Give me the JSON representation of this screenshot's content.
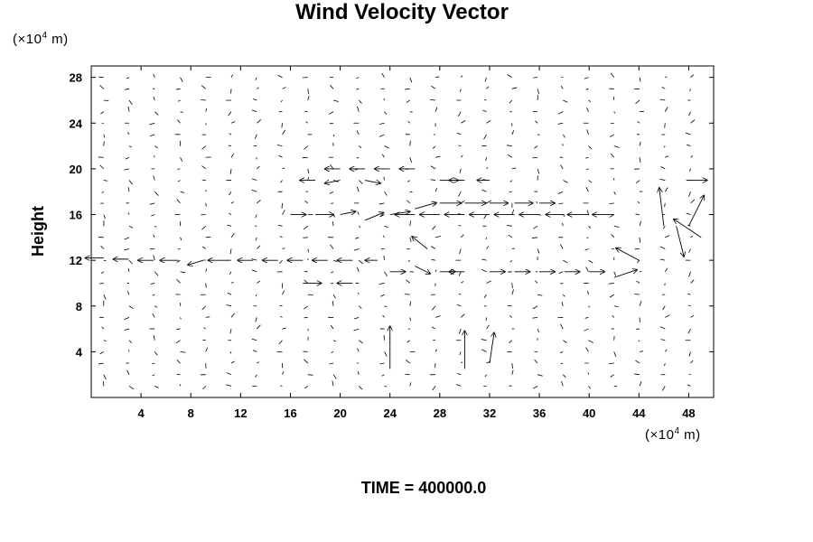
{
  "chart_data": {
    "type": "vector_field",
    "title": "Wind Velocity Vector",
    "ylabel": "Height",
    "x_unit_label": "(×10⁴ m)",
    "y_unit_label": "(×10⁴ m)",
    "unit_prefix": "(×10",
    "unit_exp": "4",
    "unit_suffix": " m)",
    "xlim": [
      0,
      50
    ],
    "ylim": [
      0,
      29
    ],
    "xticks": [
      4,
      8,
      12,
      16,
      20,
      24,
      28,
      32,
      36,
      40,
      44,
      48
    ],
    "yticks": [
      4,
      8,
      12,
      16,
      20,
      24,
      28
    ],
    "grid_dx": 2.05,
    "grid_dy": 1.0,
    "annotation": "TIME = 400000.0",
    "vectors": [
      {
        "x": 1,
        "y": 12.2,
        "u": -1.2,
        "v": 0.0
      },
      {
        "x": 3,
        "y": 12.1,
        "u": -1.0,
        "v": 0.0
      },
      {
        "x": 5,
        "y": 12.0,
        "u": -1.0,
        "v": 0.0
      },
      {
        "x": 7,
        "y": 12.0,
        "u": -1.2,
        "v": 0.0
      },
      {
        "x": 9,
        "y": 12.0,
        "u": -1.0,
        "v": -0.3
      },
      {
        "x": 11,
        "y": 12.0,
        "u": -1.3,
        "v": 0.0
      },
      {
        "x": 13,
        "y": 12.0,
        "u": -1.0,
        "v": 0.0
      },
      {
        "x": 15,
        "y": 12.0,
        "u": -1.0,
        "v": 0.0
      },
      {
        "x": 17,
        "y": 12.0,
        "u": -1.0,
        "v": 0.0
      },
      {
        "x": 19,
        "y": 12.0,
        "u": -1.0,
        "v": 0.0
      },
      {
        "x": 21,
        "y": 12.0,
        "u": -1.0,
        "v": 0.0
      },
      {
        "x": 23,
        "y": 12.0,
        "u": -0.8,
        "v": 0.0
      },
      {
        "x": 16,
        "y": 16.0,
        "u": 1.0,
        "v": 0.0
      },
      {
        "x": 18,
        "y": 16.0,
        "u": 1.2,
        "v": 0.0
      },
      {
        "x": 20,
        "y": 16.0,
        "u": 1.0,
        "v": 0.2
      },
      {
        "x": 22,
        "y": 15.5,
        "u": 1.2,
        "v": 0.5
      },
      {
        "x": 24,
        "y": 16.0,
        "u": 1.3,
        "v": 0.2
      },
      {
        "x": 26,
        "y": 16.5,
        "u": 1.4,
        "v": 0.4
      },
      {
        "x": 28,
        "y": 17.0,
        "u": 1.4,
        "v": 0.0
      },
      {
        "x": 30,
        "y": 17.0,
        "u": 1.4,
        "v": 0.0
      },
      {
        "x": 32,
        "y": 17.0,
        "u": 1.2,
        "v": 0.0
      },
      {
        "x": 34,
        "y": 17.0,
        "u": 1.2,
        "v": 0.0
      },
      {
        "x": 36,
        "y": 17.0,
        "u": 1.0,
        "v": 0.0
      },
      {
        "x": 26,
        "y": 16.0,
        "u": -1.3,
        "v": 0.0
      },
      {
        "x": 28,
        "y": 16.0,
        "u": -1.3,
        "v": 0.0
      },
      {
        "x": 30,
        "y": 16.0,
        "u": -1.3,
        "v": 0.0
      },
      {
        "x": 32,
        "y": 16.0,
        "u": -1.3,
        "v": 0.0
      },
      {
        "x": 34,
        "y": 16.0,
        "u": -1.3,
        "v": 0.0
      },
      {
        "x": 36,
        "y": 16.0,
        "u": -1.3,
        "v": 0.0
      },
      {
        "x": 38,
        "y": 16.0,
        "u": -1.2,
        "v": 0.0
      },
      {
        "x": 40,
        "y": 16.0,
        "u": -1.4,
        "v": 0.0
      },
      {
        "x": 42,
        "y": 16.0,
        "u": -1.4,
        "v": 0.0
      },
      {
        "x": 20,
        "y": 20.0,
        "u": -1.0,
        "v": 0.0
      },
      {
        "x": 22,
        "y": 20.0,
        "u": -1.0,
        "v": 0.0
      },
      {
        "x": 24,
        "y": 20.0,
        "u": -1.0,
        "v": 0.0
      },
      {
        "x": 26,
        "y": 20.0,
        "u": -1.0,
        "v": 0.0
      },
      {
        "x": 28,
        "y": 19.0,
        "u": 1.2,
        "v": 0.0
      },
      {
        "x": 30,
        "y": 19.0,
        "u": -1.0,
        "v": 0.0
      },
      {
        "x": 32,
        "y": 19.0,
        "u": -0.8,
        "v": 0.0
      },
      {
        "x": 20,
        "y": 19.0,
        "u": -1.0,
        "v": -0.2
      },
      {
        "x": 22,
        "y": 19.0,
        "u": 1.0,
        "v": -0.2
      },
      {
        "x": 18,
        "y": 19.0,
        "u": -1.0,
        "v": 0.0
      },
      {
        "x": 24,
        "y": 11.0,
        "u": 1.0,
        "v": 0.0
      },
      {
        "x": 26,
        "y": 11.5,
        "u": 1.0,
        "v": -0.5
      },
      {
        "x": 28,
        "y": 11.0,
        "u": 1.0,
        "v": 0.0
      },
      {
        "x": 30,
        "y": 11.0,
        "u": -1.0,
        "v": 0.0
      },
      {
        "x": 32,
        "y": 11.0,
        "u": 1.0,
        "v": 0.0
      },
      {
        "x": 34,
        "y": 11.0,
        "u": 1.0,
        "v": 0.0
      },
      {
        "x": 36,
        "y": 11.0,
        "u": 1.0,
        "v": 0.0
      },
      {
        "x": 38,
        "y": 11.0,
        "u": 1.0,
        "v": 0.0
      },
      {
        "x": 40,
        "y": 11.0,
        "u": 1.0,
        "v": 0.0
      },
      {
        "x": 42,
        "y": 10.5,
        "u": 1.5,
        "v": 0.5
      },
      {
        "x": 46,
        "y": 15.0,
        "u": -0.3,
        "v": 2.5
      },
      {
        "x": 47,
        "y": 15.0,
        "u": 0.5,
        "v": -2.0
      },
      {
        "x": 48,
        "y": 15.0,
        "u": 1.0,
        "v": 2.0
      },
      {
        "x": 49,
        "y": 14.0,
        "u": -1.8,
        "v": 1.2
      },
      {
        "x": 44,
        "y": 12.0,
        "u": -1.5,
        "v": 0.8
      },
      {
        "x": 48,
        "y": 19.0,
        "u": 1.2,
        "v": 0.0
      },
      {
        "x": 24,
        "y": 2.5,
        "u": 0.0,
        "v": 2.8
      },
      {
        "x": 30,
        "y": 2.5,
        "u": 0.0,
        "v": 2.5
      },
      {
        "x": 32,
        "y": 3.0,
        "u": 0.3,
        "v": 2.0
      },
      {
        "x": 27,
        "y": 13.0,
        "u": -1.0,
        "v": 0.8
      },
      {
        "x": 17,
        "y": 10.0,
        "u": 1.2,
        "v": 0.0
      },
      {
        "x": 21,
        "y": 10.0,
        "u": -1.0,
        "v": 0.0
      }
    ]
  }
}
